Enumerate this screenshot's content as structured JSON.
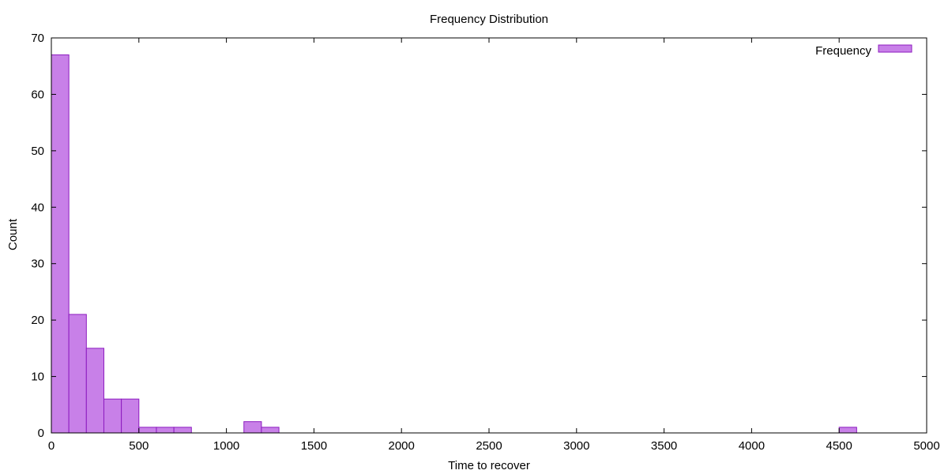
{
  "chart_data": {
    "type": "bar",
    "title": "Frequency Distribution",
    "xlabel": "Time to recover",
    "ylabel": "Count",
    "xlim": [
      0,
      5000
    ],
    "ylim": [
      0,
      70
    ],
    "xticks": [
      0,
      500,
      1000,
      1500,
      2000,
      2500,
      3000,
      3500,
      4000,
      4500,
      5000
    ],
    "yticks": [
      0,
      10,
      20,
      30,
      40,
      50,
      60,
      70
    ],
    "grid": false,
    "legend_position": "top-right",
    "bin_width": 100,
    "series": [
      {
        "name": "Frequency",
        "color": "#c880e8",
        "edge_color": "#8c1bbf",
        "bins": [
          {
            "x0": 0,
            "x1": 100,
            "count": 67
          },
          {
            "x0": 100,
            "x1": 200,
            "count": 21
          },
          {
            "x0": 200,
            "x1": 300,
            "count": 15
          },
          {
            "x0": 300,
            "x1": 400,
            "count": 6
          },
          {
            "x0": 400,
            "x1": 500,
            "count": 6
          },
          {
            "x0": 500,
            "x1": 600,
            "count": 1
          },
          {
            "x0": 600,
            "x1": 700,
            "count": 1
          },
          {
            "x0": 700,
            "x1": 800,
            "count": 1
          },
          {
            "x0": 1100,
            "x1": 1200,
            "count": 2
          },
          {
            "x0": 1200,
            "x1": 1300,
            "count": 1
          },
          {
            "x0": 4500,
            "x1": 4600,
            "count": 1
          }
        ]
      }
    ]
  }
}
